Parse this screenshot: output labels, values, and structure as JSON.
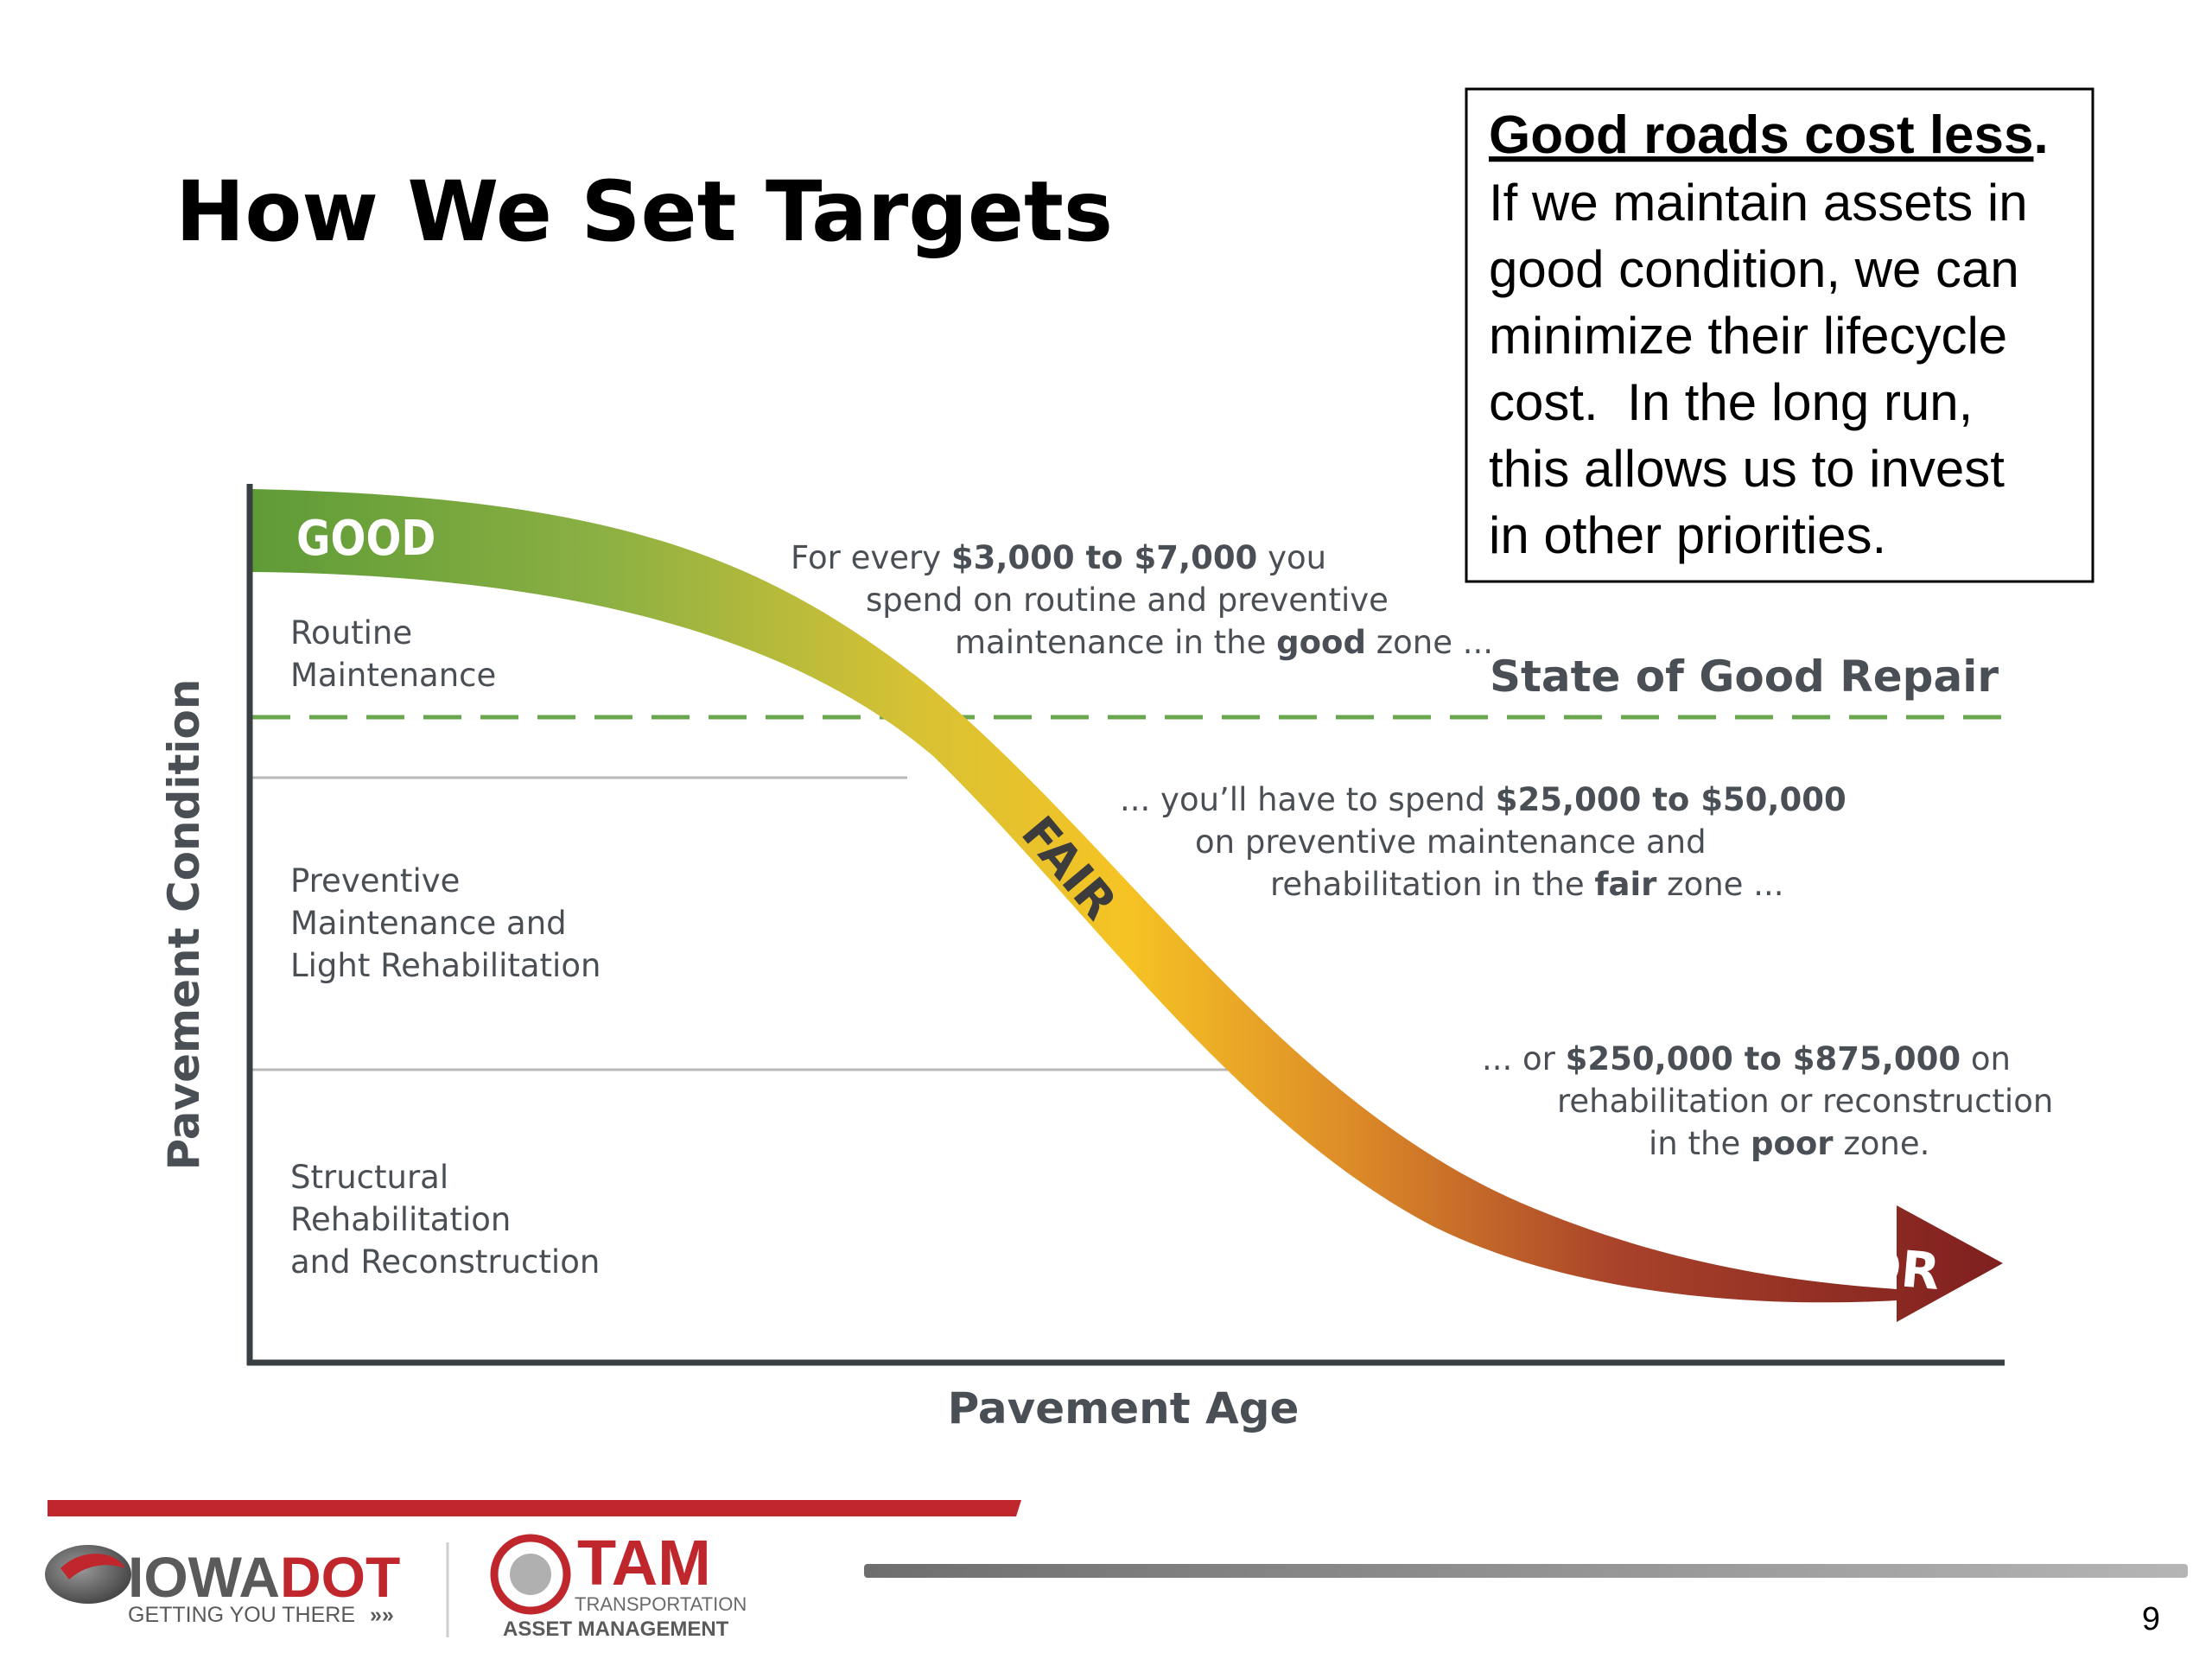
{
  "slide": {
    "title": "How We Set Targets",
    "page_number": "9"
  },
  "callout": {
    "heading": "Good roads cost less",
    "heading_period": ".",
    "lines": [
      "If we maintain assets in",
      "good condition, we can",
      "minimize their lifecycle",
      "cost.  In the long run,",
      "this allows us to invest",
      "in other priorities."
    ]
  },
  "diagram": {
    "y_axis_label": "Pavement Condition",
    "x_axis_label": "Pavement Age",
    "state_of_good_repair": "State of Good Repair",
    "zones": {
      "good": "GOOD",
      "fair": "FAIR",
      "poor": "POOR"
    },
    "treatments": {
      "routine": [
        "Routine",
        "Maintenance"
      ],
      "preventive": [
        "Preventive",
        "Maintenance and",
        "Light Rehabilitation"
      ],
      "structural": [
        "Structural",
        "Rehabilitation",
        "and Reconstruction"
      ]
    },
    "annotations": {
      "good": {
        "l1_pre": "For every ",
        "l1_bold": "$3,000 to $7,000",
        "l1_post": " you",
        "l2": "spend on routine and preventive",
        "l3_pre": "maintenance in the ",
        "l3_bold": "good",
        "l3_post": " zone ..."
      },
      "fair": {
        "l1_pre": "... you’ll have to spend ",
        "l1_bold": "$25,000 to $50,000",
        "l2": "on preventive maintenance and",
        "l3_pre": "rehabilitation in the ",
        "l3_bold": "fair",
        "l3_post": " zone ..."
      },
      "poor": {
        "l1_pre": "... or ",
        "l1_bold": "$250,000 to $875,000",
        "l1_post": " on",
        "l2": "rehabilitation or reconstruction",
        "l3_pre": "in the ",
        "l3_bold": "poor",
        "l3_post": " zone."
      }
    },
    "colors": {
      "good_green": "#5e9b37",
      "fair_yellow": "#f6c324",
      "poor_red": "#7f1f1f",
      "dashed_green": "#6aa84f",
      "axis": "#3a3f44",
      "text_gray": "#4a4f55"
    }
  },
  "footer": {
    "iowadot": {
      "brand_a": "IOWA",
      "brand_b": "DOT",
      "tagline": "GETTING YOU THERE"
    },
    "tam": {
      "brand": "TAM",
      "sub1": "TRANSPORTATION",
      "sub2": "ASSET MANAGEMENT"
    },
    "colors": {
      "red_bar": "#c0272d",
      "gray_bar": "#8a8a8a"
    }
  }
}
